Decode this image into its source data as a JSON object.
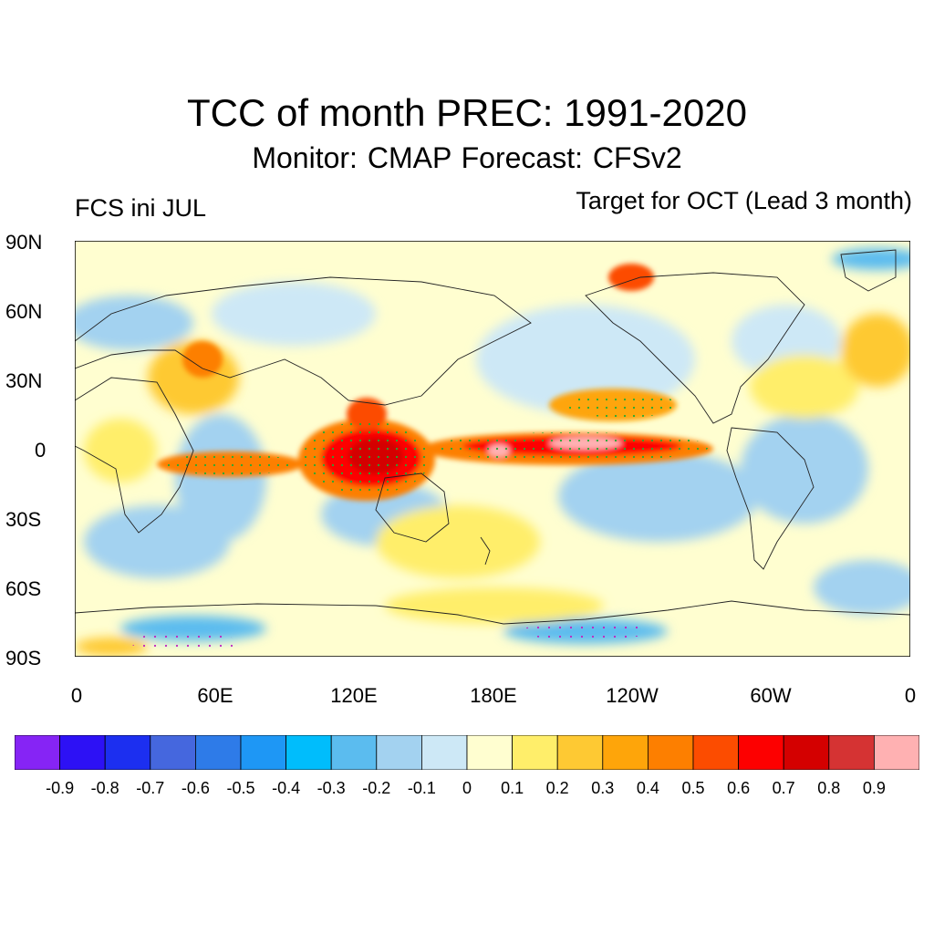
{
  "title": "TCC of month PREC: 1991-2020",
  "subtitle": "Monitor: CMAP   Forecast: CFSv2",
  "left_string": "FCS ini JUL",
  "right_string": "Target for OCT (Lead 3 month)",
  "map": {
    "projection": "cylindrical-equidistant",
    "lon_range": [
      0,
      360
    ],
    "lat_range": [
      -90,
      90
    ],
    "lat_labels": [
      "90N",
      "60N",
      "30N",
      "0",
      "30S",
      "60S",
      "90S"
    ],
    "lon_labels": [
      "0",
      "60E",
      "120E",
      "180E",
      "120W",
      "60W",
      "0"
    ],
    "field": "correlation (TCC)",
    "significance_markers": "dots",
    "high_correlation_regions": [
      "Maritime Continent (~100E-150E, 15S-10N)",
      "Central/eastern equatorial Pacific (~160E-130W, 5S-10N)",
      "Western Indian Ocean / East Africa"
    ]
  },
  "colorbar": {
    "labels": [
      "-0.9",
      "-0.8",
      "-0.7",
      "-0.6",
      "-0.5",
      "-0.4",
      "-0.3",
      "-0.2",
      "-0.1",
      "0",
      "0.1",
      "0.2",
      "0.3",
      "0.4",
      "0.5",
      "0.6",
      "0.7",
      "0.8",
      "0.9"
    ],
    "colors": [
      "#8624f5",
      "#2d11f5",
      "#1c2ff0",
      "#4567de",
      "#2e7be8",
      "#1e97f5",
      "#00bdfc",
      "#5bbcef",
      "#a3d2f0",
      "#cde8f6",
      "#fffed0",
      "#ffee6a",
      "#fec933",
      "#fea50a",
      "#fd7f00",
      "#fc4c00",
      "#fd0000",
      "#d40000",
      "#d53333",
      "#ffb1b2"
    ]
  }
}
